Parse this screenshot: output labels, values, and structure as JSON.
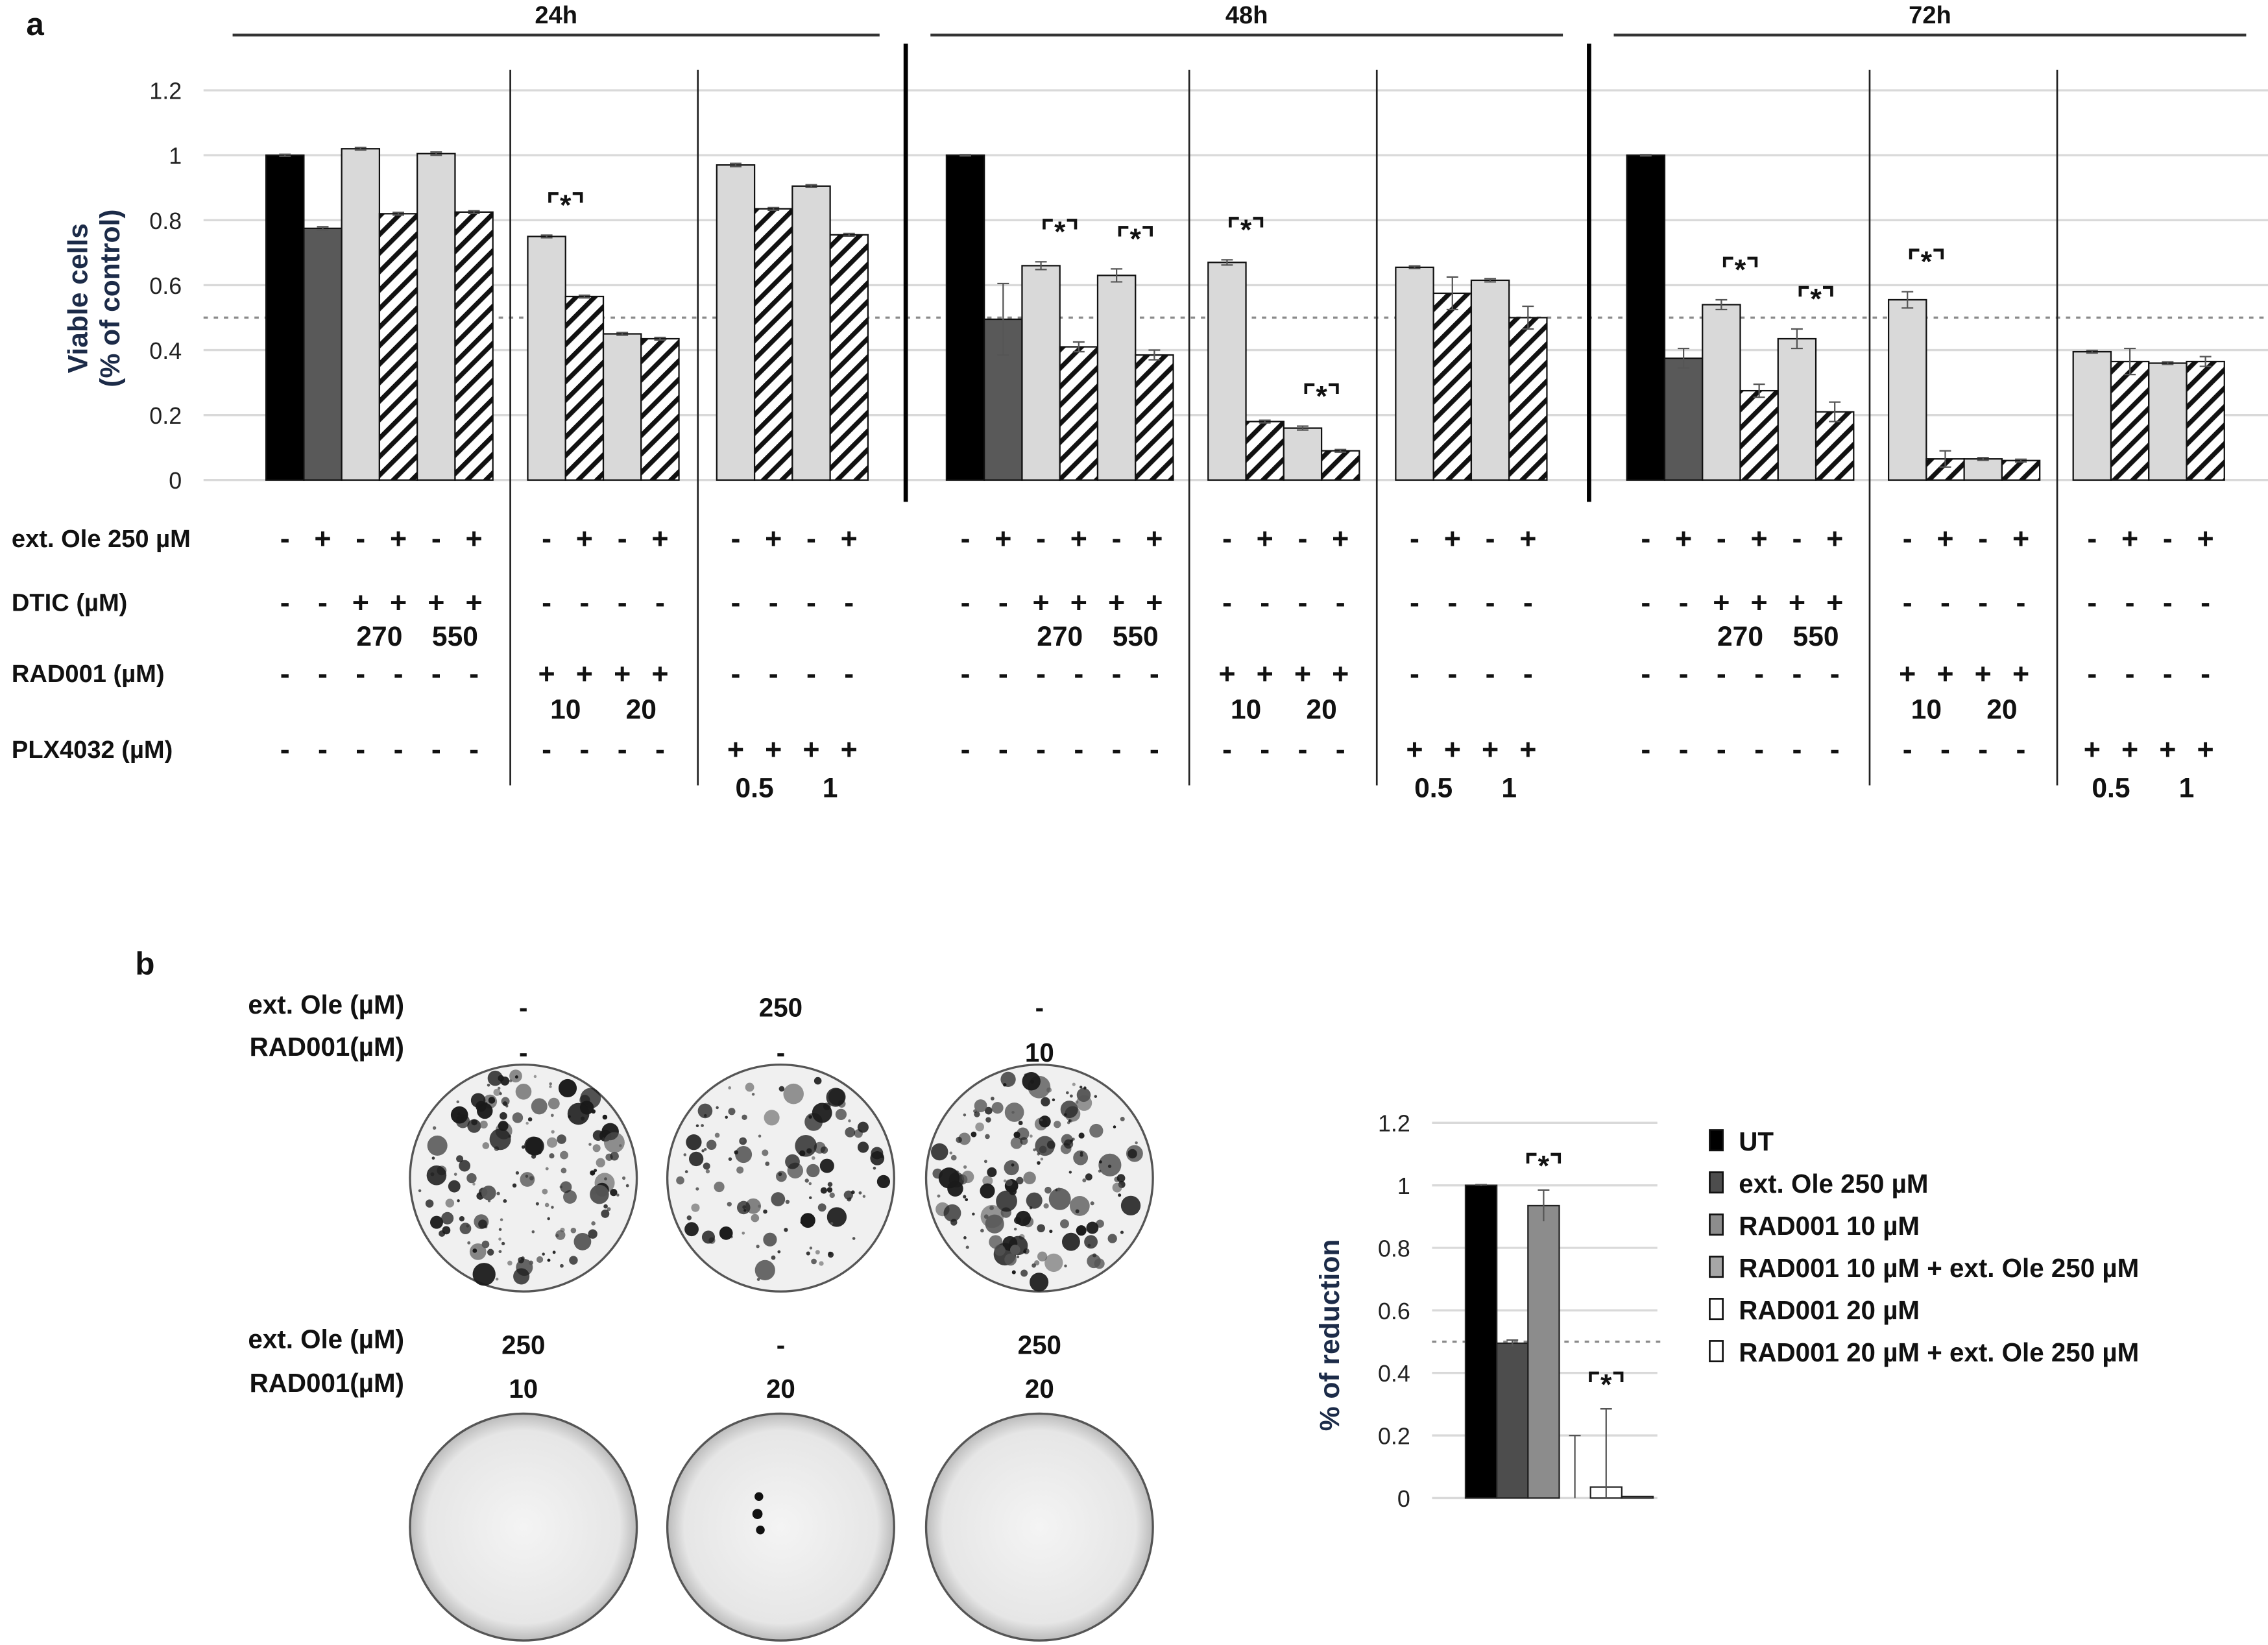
{
  "panel_a": {
    "label": "a",
    "condition_rows": [
      "ext. Ole 250 µM",
      "DTIC (µM)",
      "RAD001 (µM)",
      "PLX4032 (µM)"
    ],
    "group_types": {
      "dtic": {
        "signs": [
          [
            "-",
            "+",
            "-",
            "+",
            "-",
            "+"
          ],
          [
            "-",
            "-",
            "+",
            "+",
            "+",
            "+"
          ],
          [
            "-",
            "-",
            "-",
            "-",
            "-",
            "-"
          ],
          [
            "-",
            "-",
            "-",
            "-",
            "-",
            "-"
          ]
        ],
        "sublabels": {
          "row": 1,
          "items": [
            [
              "270",
              2,
              3
            ],
            [
              "550",
              4,
              5
            ]
          ]
        }
      },
      "rad": {
        "signs": [
          [
            "-",
            "+",
            "-",
            "+"
          ],
          [
            "-",
            "-",
            "-",
            "-"
          ],
          [
            "+",
            "+",
            "+",
            "+"
          ],
          [
            "-",
            "-",
            "-",
            "-"
          ]
        ],
        "sublabels": {
          "row": 2,
          "items": [
            [
              "10",
              0,
              1
            ],
            [
              "20",
              2,
              3
            ]
          ]
        }
      },
      "plx": {
        "signs": [
          [
            "-",
            "+",
            "-",
            "+"
          ],
          [
            "-",
            "-",
            "-",
            "-"
          ],
          [
            "-",
            "-",
            "-",
            "-"
          ],
          [
            "+",
            "+",
            "+",
            "+"
          ]
        ],
        "sublabels": {
          "row": 3,
          "items": [
            [
              "0.5",
              0,
              1
            ],
            [
              "1",
              2,
              3
            ]
          ]
        }
      }
    }
  },
  "panel_b": {
    "label": "b",
    "plate_rows": [
      {
        "labels": [
          "ext. Ole (µM)",
          "RAD001(µM)"
        ],
        "values": [
          [
            "-",
            "-"
          ],
          [
            "250",
            "-"
          ],
          [
            "-",
            "10"
          ]
        ],
        "colonies": [
          1,
          0.7,
          1
        ]
      },
      {
        "labels": [
          "ext. Ole (µM)",
          "RAD001(µM)"
        ],
        "values": [
          [
            "250",
            "10"
          ],
          [
            "-",
            "20"
          ],
          [
            "250",
            "20"
          ]
        ],
        "colonies": [
          0,
          0.02,
          0
        ]
      }
    ]
  },
  "colors": {
    "black": "#000000",
    "dark": "#595959",
    "light": "#d9d9d9",
    "mid": "#8c8c8c",
    "mid2": "#a6a6a6",
    "white": "#ffffff",
    "ref": "#8a8a8a"
  },
  "chart_data": [
    {
      "type": "bar",
      "title": "",
      "ylabel": [
        "Viable cells",
        "(% of control)"
      ],
      "ylim": [
        0,
        1.2
      ],
      "yticks": [
        "0",
        "0.2",
        "0.4",
        "0.6",
        "0.8",
        "1",
        "1.2"
      ],
      "reference_line": 0.5,
      "grid": true,
      "significance_mark": "⌜*⌝",
      "timepoints": [
        {
          "label": "24h",
          "groups": [
            {
              "type": "dtic",
              "values": [
                1,
                0.775,
                1.02,
                0.82,
                1.005,
                0.825
              ],
              "errors": [
                0.003,
                0.005,
                0.004,
                0.004,
                0.005,
                0.004
              ],
              "sig": []
            },
            {
              "type": "rad",
              "values": [
                0.75,
                0.565,
                0.45,
                0.435
              ],
              "errors": [
                0.004,
                0.004,
                0.004,
                0.004
              ],
              "sig": [
                [
                  0,
                  1
                ]
              ]
            },
            {
              "type": "plx",
              "values": [
                0.97,
                0.835,
                0.905,
                0.755
              ],
              "errors": [
                0.005,
                0.004,
                0.004,
                0.004
              ],
              "sig": []
            }
          ]
        },
        {
          "label": "48h",
          "groups": [
            {
              "type": "dtic",
              "values": [
                1,
                0.495,
                0.66,
                0.41,
                0.63,
                0.385
              ],
              "errors": [
                0.002,
                0.11,
                0.012,
                0.015,
                0.02,
                0.015
              ],
              "sig": [
                [
                  2,
                  3
                ],
                [
                  4,
                  5
                ]
              ]
            },
            {
              "type": "rad",
              "values": [
                0.67,
                0.18,
                0.16,
                0.09
              ],
              "errors": [
                0.008,
                0.004,
                0.006,
                0.004
              ],
              "sig": [
                [
                  0,
                  1
                ],
                [
                  2,
                  3
                ]
              ]
            },
            {
              "type": "plx",
              "values": [
                0.655,
                0.575,
                0.615,
                0.5
              ],
              "errors": [
                0.004,
                0.05,
                0.005,
                0.035
              ],
              "sig": []
            }
          ]
        },
        {
          "label": "72h",
          "groups": [
            {
              "type": "dtic",
              "values": [
                1,
                0.375,
                0.54,
                0.275,
                0.435,
                0.21
              ],
              "errors": [
                0.002,
                0.03,
                0.015,
                0.02,
                0.03,
                0.03
              ],
              "sig": [
                [
                  2,
                  3
                ],
                [
                  4,
                  5
                ]
              ]
            },
            {
              "type": "rad",
              "values": [
                0.555,
                0.065,
                0.065,
                0.06
              ],
              "errors": [
                0.025,
                0.025,
                0.004,
                0.004
              ],
              "sig": [
                [
                  0,
                  1
                ]
              ]
            },
            {
              "type": "plx",
              "values": [
                0.395,
                0.365,
                0.36,
                0.365
              ],
              "errors": [
                0.004,
                0.04,
                0.004,
                0.015
              ],
              "sig": []
            }
          ]
        }
      ]
    },
    {
      "type": "bar",
      "title": "",
      "ylabel": "% of reduction",
      "ylim": [
        0,
        1.2
      ],
      "yticks": [
        "0",
        "0.2",
        "0.4",
        "0.6",
        "0.8",
        "1",
        "1.2"
      ],
      "reference_line": 0.5,
      "grid": true,
      "legend_position": "right",
      "series": [
        {
          "name": "UT",
          "value": 1.0,
          "error": 0.002,
          "color": "#000000"
        },
        {
          "name": "ext. Ole 250 µM",
          "value": 0.495,
          "error": 0.01,
          "color": "#4d4d4d"
        },
        {
          "name": "RAD001 10 µM",
          "value": 0.935,
          "error": 0.05,
          "color": "#8c8c8c"
        },
        {
          "name": "RAD001 10 µM + ext. Ole 250 µM",
          "value": 0.0,
          "error": 0.2,
          "color": "#a6a6a6"
        },
        {
          "name": "RAD001 20 µM",
          "value": 0.035,
          "error": 0.25,
          "color": "#ffffff"
        },
        {
          "name": "RAD001 20 µM + ext. Ole 250 µM",
          "value": 0.005,
          "error": 0.0,
          "color": "#ffffff"
        }
      ],
      "sig": [
        [
          2
        ],
        [
          4
        ]
      ],
      "significance_mark": "⌜*⌝"
    }
  ]
}
